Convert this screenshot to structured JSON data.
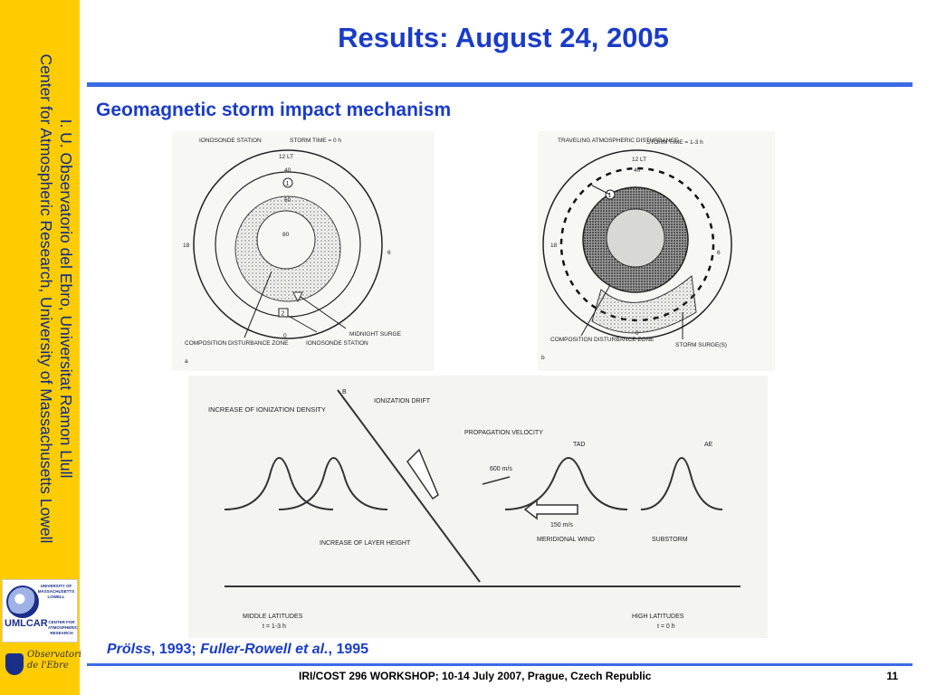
{
  "sidebar": {
    "line1": "I. U. Observatorio del Ebro, Universitat Ramon Llull",
    "line2": "Center for Atmospheric Research, University of Massachusetts Lowell",
    "logo1_text": "UNIVERSITY OF MASSACHUSETTS LOWELL",
    "logo1_mark": "UMLCAR",
    "logo1_sub": "CENTER FOR ATMOSPHERIC RESEARCH",
    "logo2_text": "Observatori de l'Ebre"
  },
  "slide": {
    "title": "Results: August 24, 2005",
    "subtitle": "Geomagnetic storm impact mechanism"
  },
  "figure_a": {
    "ionosonde_station": "IONOSONDE STATION",
    "storm_time": "STORM TIME = 0 h",
    "lt12": "12 LT",
    "lat40": "40",
    "lat60": "60",
    "lat80": "80",
    "h18": "18",
    "h6": "6",
    "h0": "0",
    "marker1": "1",
    "marker2": "2",
    "composition": "COMPOSITION DISTURBANCE ZONE",
    "panel": "a",
    "ionosonde_station2": "IONOSONDE STATION",
    "midnight": "MIDNIGHT SURGE"
  },
  "figure_b": {
    "tad": "TRAVELING ATMOSPHERIC DISTURBANCE",
    "storm_time": "STORM TIME = 1-3 h",
    "lt12": "12 LT",
    "lat40": "40",
    "h18": "18",
    "h6": "6",
    "h0": "0",
    "marker1": "1",
    "composition": "COMPOSITION DISTURBANCE ZONE",
    "panel": "b",
    "surge": "STORM SURGE(S)"
  },
  "figure_c": {
    "increase_ionization": "INCREASE OF IONIZATION DENSITY",
    "b_label": "B",
    "ionization_drift": "IONIZATION DRIFT",
    "propagation": "PROPAGATION VELOCITY",
    "tad": "TAD",
    "ae": "AE",
    "speed1": "600 m/s",
    "speed2": "150 m/s",
    "increase_layer": "INCREASE OF LAYER HEIGHT",
    "meridional": "MERIDIONAL WIND",
    "substorm": "SUBSTORM",
    "middle": "MIDDLE LATITUDES",
    "middle_t": "t = 1-3 h",
    "high": "HIGH LATITUDES",
    "high_t": "t = 0 h"
  },
  "citation": {
    "author1": "Prölss",
    "year1": ", 1993; ",
    "author2": "Fuller-Rowell et al.",
    "year2": ", 1995"
  },
  "footer": {
    "text": "IRI/COST 296 WORKSHOP; 10-14 July 2007, Prague, Czech Republic",
    "page": "11"
  },
  "colors": {
    "sidebar": "#ffcc00",
    "title": "#1a3cc7",
    "rule": "#3b6ce5"
  }
}
